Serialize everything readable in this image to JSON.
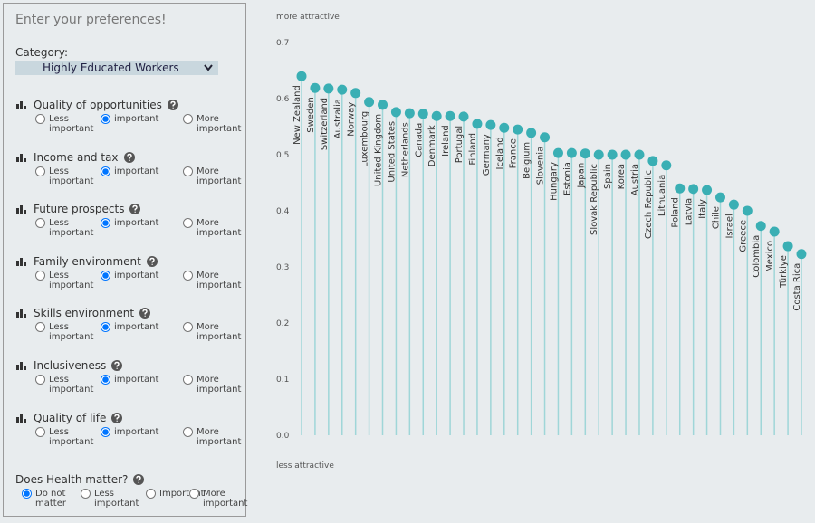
{
  "panel": {
    "title": "Enter your preferences!",
    "category_label": "Category:",
    "category_value": "Highly Educated Workers",
    "options": [
      "Less important",
      "important",
      "More important"
    ],
    "criteria": [
      {
        "label": "Quality of opportunities",
        "selected": 1
      },
      {
        "label": "Income and tax",
        "selected": 1
      },
      {
        "label": "Future prospects",
        "selected": 1
      },
      {
        "label": "Family environment",
        "selected": 1
      },
      {
        "label": "Skills environment",
        "selected": 1
      },
      {
        "label": "Inclusiveness",
        "selected": 1
      },
      {
        "label": "Quality of life",
        "selected": 1
      }
    ],
    "health": {
      "label": "Does Health matter?",
      "options": [
        "Do not matter",
        "Less important",
        "Important",
        "More important"
      ],
      "selected": 0
    }
  },
  "chart_data": {
    "type": "lollipop",
    "top_label": "more attractive",
    "bottom_label": "less attractive",
    "color": "#3aafb4",
    "stem_color": "#9fd6d8",
    "categories": [
      "New Zealand",
      "Sweden",
      "Switzerland",
      "Australia",
      "Norway",
      "Luxembourg",
      "United Kingdom",
      "United States",
      "Netherlands",
      "Canada",
      "Denmark",
      "Ireland",
      "Portugal",
      "Finland",
      "Germany",
      "Iceland",
      "France",
      "Belgium",
      "Slovenia",
      "Hungary",
      "Estonia",
      "Japan",
      "Slovak Republic",
      "Spain",
      "Korea",
      "Austria",
      "Czech Republic",
      "Lithuania",
      "Poland",
      "Latvia",
      "Italy",
      "Chile",
      "Israel",
      "Greece",
      "Colombia",
      "Mexico",
      "Türkiye",
      "Costa Rica"
    ],
    "values": [
      0.64,
      0.619,
      0.618,
      0.616,
      0.61,
      0.594,
      0.589,
      0.576,
      0.574,
      0.573,
      0.569,
      0.569,
      0.568,
      0.555,
      0.553,
      0.548,
      0.545,
      0.539,
      0.531,
      0.503,
      0.503,
      0.502,
      0.5,
      0.5,
      0.5,
      0.5,
      0.489,
      0.481,
      0.44,
      0.439,
      0.437,
      0.424,
      0.411,
      0.4,
      0.373,
      0.363,
      0.337,
      0.323
    ],
    "ylim": [
      0,
      0.7
    ],
    "yticks": [
      {
        "value": 0,
        "label": "0.0"
      },
      0.1,
      0.2,
      0.3,
      0.4,
      0.5,
      0.6,
      0.7
    ],
    "grid": false
  }
}
